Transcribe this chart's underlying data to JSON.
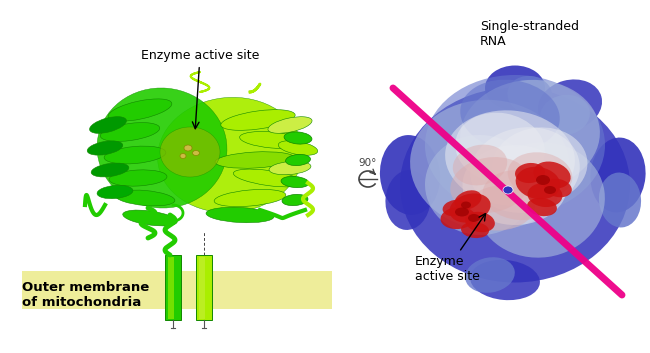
{
  "bg_color": "#ffffff",
  "membrane_color": "#eeed9a",
  "membrane_border_color": "#c8c830",
  "helix_green": "#22cc00",
  "helix_lime": "#aaee00",
  "helix_dark": "#118800",
  "active_site_yellow": "#ddcc66",
  "rotation_label": "90°",
  "label_enzyme_active_left": "Enzyme active site",
  "label_enzyme_active_right": "Enzyme\nactive site",
  "label_outer_membrane": "Outer membrane\nof mitochondria",
  "label_rna": "Single-stranded\nRNA",
  "rna_line_color": "#ee0088",
  "surf_blue_dark": "#3333bb",
  "surf_blue_mid": "#6677cc",
  "surf_blue_light": "#aabbdd",
  "surf_white": "#e8eaf0",
  "surf_pink": "#ddaaaa",
  "surf_red": "#cc1111",
  "surf_red_dark": "#990000"
}
